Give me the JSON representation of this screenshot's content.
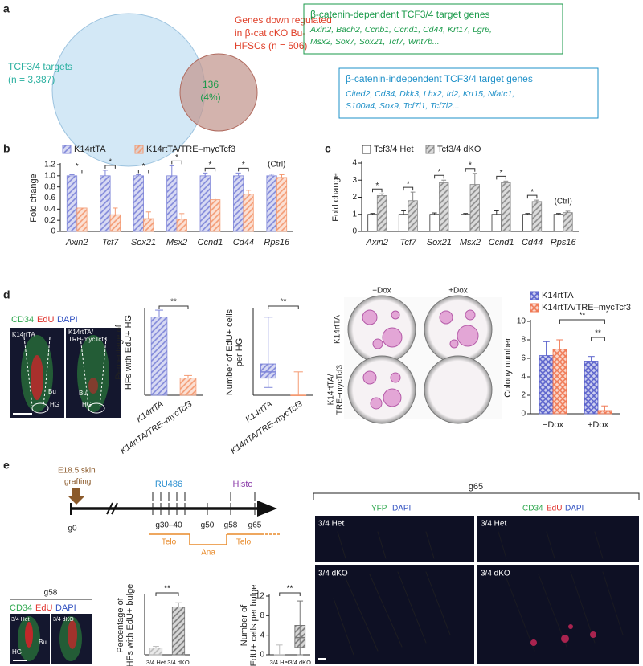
{
  "panel_labels": [
    "a",
    "b",
    "c",
    "d",
    "e"
  ],
  "venn": {
    "left_label": [
      "TCF3/4 targets",
      "(n = 3,387)"
    ],
    "right_label": [
      "Genes down regulated",
      "in β-cat cKO Bu-",
      "HFSCs (n = 506)"
    ],
    "overlap": [
      "136",
      "(4%)"
    ]
  },
  "gene_boxes": [
    {
      "title": "β-catenin-dependent TCF3/4 target genes",
      "genes": [
        "Axin2, Bach2, Ccnb1, Ccnd1, Cd44, Krt17, Lgr6,",
        "Msx2, Sox7, Sox21, Tcf7, Wnt7b..."
      ],
      "color": "#1a9a4a"
    },
    {
      "title": "β-catenin-independent TCF3/4 target genes",
      "genes": [
        "Cited2, Cd34, Dkk3, Lhx2, Id2, Krt15, Nfatc1,",
        "S100a4, Sox9, Tcf7l1, Tcf7l2..."
      ],
      "color": "#1e90c8"
    }
  ],
  "chart_data": [
    {
      "type": "bar",
      "ylabel": "Fold change",
      "categories": [
        "Axin2",
        "Tcf7",
        "Sox21",
        "Msx2",
        "Ccnd1",
        "Cd44",
        "Rps16"
      ],
      "series": [
        {
          "name": "K14rtTA",
          "color": "#7f86d9",
          "hatch": "diagonal",
          "values": [
            1,
            1,
            1,
            1,
            1,
            1,
            1
          ],
          "errors": [
            0.02,
            0.1,
            0.02,
            0.18,
            0.05,
            0.05,
            0.03
          ]
        },
        {
          "name": "K14rtTA/TRE–mycTcf3",
          "color": "#f49a72",
          "hatch": "diagonal",
          "values": [
            0.42,
            0.3,
            0.23,
            0.22,
            0.57,
            0.67,
            0.97
          ],
          "errors": [
            0,
            0.12,
            0.12,
            0.1,
            0.03,
            0.07,
            0.05
          ]
        }
      ],
      "ylim": [
        0,
        1.2
      ],
      "yticks": [
        0,
        0.2,
        0.4,
        0.6,
        0.8,
        {
          "value": 1,
          "label": "1.0"
        },
        1.2
      ],
      "significance": [
        "*",
        "*",
        "*",
        "*",
        "*",
        "*"
      ],
      "control_label": "(Ctrl)",
      "legend": "top"
    },
    {
      "type": "bar",
      "ylabel": "Fold change",
      "categories": [
        "Axin2",
        "Tcf7",
        "Sox21",
        "Msx2",
        "Ccnd1",
        "Cd44",
        "Rps16"
      ],
      "series": [
        {
          "name": "Tcf3/4 Het",
          "color": "#ffffff",
          "hatch": "none",
          "values": [
            1,
            1,
            1,
            1,
            1,
            1,
            1
          ],
          "errors": [
            0.05,
            0.2,
            0.08,
            0.05,
            0.2,
            0.05,
            0.05
          ]
        },
        {
          "name": "Tcf3/4 dKO",
          "color": "#8a8a8a",
          "hatch": "diagonal",
          "values": [
            2.1,
            1.8,
            2.85,
            2.75,
            2.85,
            1.75,
            1.1
          ],
          "errors": [
            0.1,
            0.5,
            0.15,
            0.65,
            0.1,
            0.08,
            0.08
          ]
        }
      ],
      "ylim": [
        0,
        4
      ],
      "yticks": [
        0,
        1,
        2,
        3,
        4
      ],
      "significance": [
        "*",
        "*",
        "*",
        "*",
        "*",
        "*"
      ],
      "control_label": "(Ctrl)",
      "legend": "top"
    },
    {
      "type": "bar",
      "ylabel": [
        "Percentage of",
        "HFs with EdU+ HG"
      ],
      "categories": [
        "K14rtTA",
        "K14rtTA/TRE–mycTcf3"
      ],
      "series": [
        {
          "colors": [
            "#7f86d9",
            "#f49a72"
          ],
          "hatch": "diagonal",
          "values": [
            91,
            20
          ],
          "errors": [
            8,
            3
          ]
        }
      ],
      "ylim": [
        0,
        100
      ],
      "significance": [
        "**"
      ]
    },
    {
      "type": "box",
      "ylabel": [
        "Number of EdU+ cells",
        "per HG"
      ],
      "categories": [
        "K14rtTA",
        "K14rtTA/TRE–mycTcf3"
      ],
      "colors": [
        "#7f86d9",
        "#f49a72"
      ],
      "hatch": "diagonal",
      "stats": [
        {
          "min": 1,
          "q1": 2.2,
          "median": 3,
          "q3": 4,
          "max": 10
        },
        {
          "min": 0,
          "q1": 0,
          "median": 0,
          "q3": 0,
          "max": 3
        }
      ],
      "ylim": [
        0,
        11
      ],
      "significance": [
        "**"
      ]
    },
    {
      "type": "bar",
      "ylabel": "Colony number",
      "categories": [
        "−Dox",
        "+Dox"
      ],
      "series": [
        {
          "name": "K14rtTA",
          "color": "#5a62cc",
          "hatch": "cross",
          "values": [
            6.3,
            5.7
          ],
          "errors": [
            1.5,
            0.5
          ]
        },
        {
          "name": "K14rtTA/TRE–mycTcf3",
          "color": "#f07a55",
          "hatch": "cross",
          "values": [
            7,
            0.35
          ],
          "errors": [
            1,
            0.5
          ]
        }
      ],
      "ylim": [
        0,
        10
      ],
      "yticks": [
        0,
        2,
        4,
        6,
        8,
        10
      ],
      "significance": [
        "**",
        "**"
      ],
      "legend": "top"
    },
    {
      "type": "bar",
      "ylabel": [
        "Percentage of",
        "HFs with EdU+ bulge"
      ],
      "categories": [
        "3/4 Het",
        "3/4 dKO"
      ],
      "series": [
        {
          "colors": [
            "#bbbbbb",
            "#777777"
          ],
          "hatch": "diagonal",
          "values": [
            8,
            57
          ],
          "errors": [
            2,
            5
          ]
        }
      ],
      "ylim": [
        0,
        70
      ],
      "significance": [
        "**"
      ]
    },
    {
      "type": "box",
      "ylabel": [
        "Number of",
        "EdU+ cells per bulge"
      ],
      "categories": [
        "3/4 Het",
        "3/4 dKO"
      ],
      "colors": [
        "#bbbbbb",
        "#777777"
      ],
      "hatch": "diagonal",
      "stats": [
        {
          "min": 0,
          "q1": 0,
          "median": 0,
          "q3": 0,
          "max": 2
        },
        {
          "min": 0,
          "q1": 1.5,
          "median": 3.5,
          "q3": 6,
          "max": 11
        }
      ],
      "ylim": [
        0,
        12
      ],
      "yticks": [
        0,
        4,
        8,
        12
      ],
      "significance": [
        "**"
      ]
    }
  ],
  "panel_d_images": {
    "stains": [
      {
        "text": "CD34",
        "color": "#2fa84f"
      },
      {
        "text": "EdU",
        "color": "#e0302a"
      },
      {
        "text": "DAPI",
        "color": "#3050c0"
      }
    ],
    "tiles": [
      [
        "K14rtTA"
      ],
      [
        "K14rtTA/",
        "TRE-mycTcf3"
      ]
    ],
    "regions": [
      "Bu",
      "HG"
    ]
  },
  "plates": {
    "columns": [
      "−Dox",
      "+Dox"
    ],
    "rows": [
      [
        "K14rtTA"
      ],
      [
        "K14rtTA/",
        "TRE–mycTcf3"
      ]
    ]
  },
  "timeline": {
    "graft": [
      "E18.5 skin",
      "grafting"
    ],
    "start": "g0",
    "treatment": "RU486",
    "harvest": "Histo",
    "days": [
      "g30–40",
      "g50",
      "g58",
      "g65"
    ],
    "phases": [
      "Telo",
      "Ana",
      "Telo"
    ]
  },
  "panel_e_left": {
    "title": "g58",
    "stains": [
      {
        "text": "CD34",
        "color": "#2fa84f"
      },
      {
        "text": "EdU",
        "color": "#e0302a"
      },
      {
        "text": "DAPI",
        "color": "#3050c0"
      }
    ],
    "tiles": [
      "3/4 Het",
      "3/4 dKO"
    ],
    "regions": [
      "Bu",
      "HG"
    ]
  },
  "panel_e_right": {
    "title": "g65",
    "columns": [
      [
        {
          "text": "YFP",
          "color": "#2fa84f"
        },
        {
          "text": "DAPI",
          "color": "#3050c0"
        }
      ],
      [
        {
          "text": "CD34",
          "color": "#2fa84f"
        },
        {
          "text": "EdU",
          "color": "#e0302a"
        },
        {
          "text": "DAPI",
          "color": "#3050c0"
        }
      ]
    ],
    "rows": [
      "3/4 Het",
      "3/4 dKO"
    ]
  }
}
